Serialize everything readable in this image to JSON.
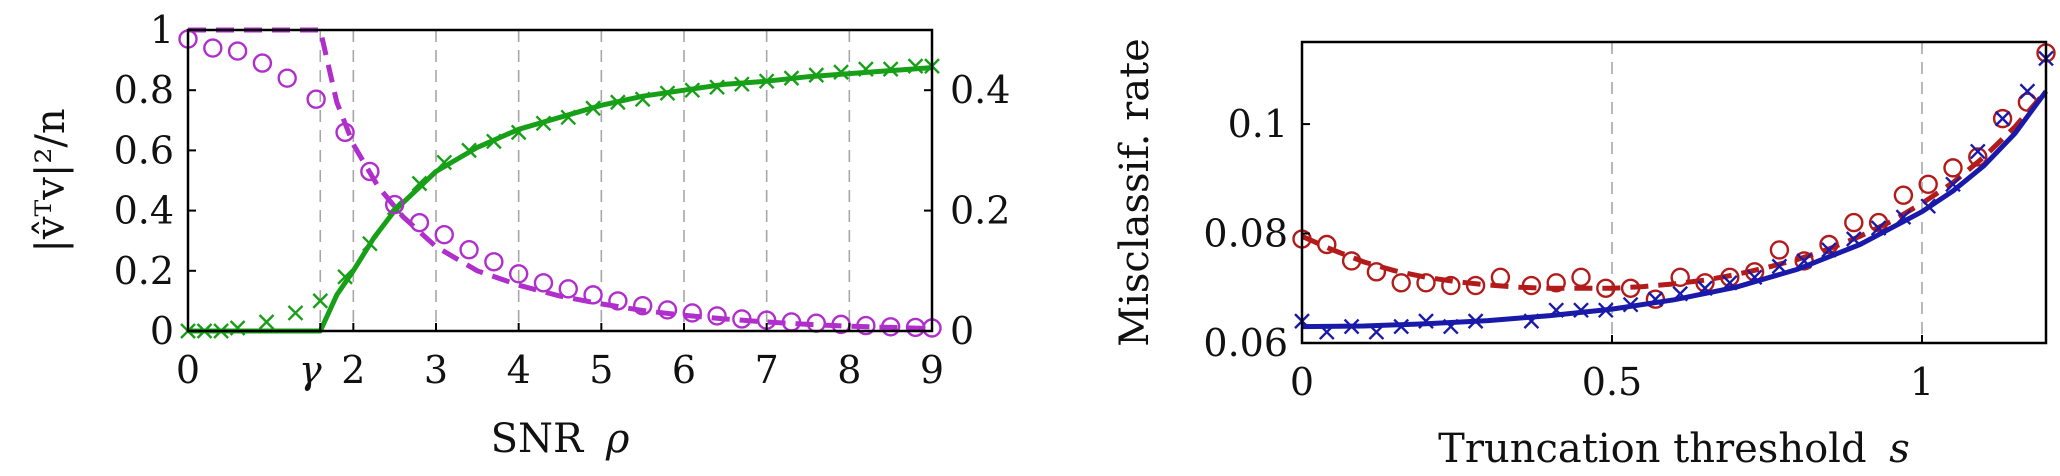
{
  "chart_data": [
    {
      "type": "line",
      "xlabel": "SNR",
      "xlabel_symbol": "ρ",
      "ylabel": "|v̂ᵀv|²/n",
      "xlim": [
        0,
        9
      ],
      "ylim": [
        0,
        1
      ],
      "y2lim": [
        0,
        0.5
      ],
      "xticks": [
        {
          "value": 0,
          "label": "0"
        },
        {
          "value": 1.6,
          "label": "γ"
        },
        {
          "value": 2,
          "label": "2"
        },
        {
          "value": 3,
          "label": "3"
        },
        {
          "value": 4,
          "label": "4"
        },
        {
          "value": 5,
          "label": "5"
        },
        {
          "value": 6,
          "label": "6"
        },
        {
          "value": 7,
          "label": "7"
        },
        {
          "value": 8,
          "label": "8"
        },
        {
          "value": 9,
          "label": "9"
        }
      ],
      "yticks": [
        "0",
        "0.2",
        "0.4",
        "0.6",
        "0.8",
        "1"
      ],
      "y2ticks": [
        "0",
        "0.2",
        "0.4"
      ],
      "grid": "vertical dashed",
      "series": [
        {
          "style": "solid line, left axis",
          "color": "#17a017",
          "x": [
            0,
            1.6,
            1.8,
            2.0,
            2.25,
            2.5,
            3.0,
            3.5,
            4.0,
            4.5,
            5.0,
            5.5,
            6.0,
            6.5,
            7.0,
            7.5,
            8.0,
            8.5,
            9.0
          ],
          "y": [
            0,
            0,
            0.12,
            0.2,
            0.31,
            0.4,
            0.53,
            0.61,
            0.67,
            0.71,
            0.75,
            0.78,
            0.8,
            0.82,
            0.83,
            0.845,
            0.855,
            0.865,
            0.875
          ]
        },
        {
          "style": "x markers, left axis",
          "color": "#17a017",
          "x": [
            0,
            0.2,
            0.4,
            0.6,
            0.95,
            1.3,
            1.6,
            1.9,
            2.2,
            2.5,
            2.8,
            3.1,
            3.4,
            3.7,
            4.0,
            4.3,
            4.6,
            4.9,
            5.2,
            5.5,
            5.8,
            6.1,
            6.4,
            6.7,
            7.0,
            7.3,
            7.6,
            7.9,
            8.2,
            8.5,
            8.8,
            9.0
          ],
          "y": [
            0,
            0,
            0,
            0.01,
            0.03,
            0.06,
            0.1,
            0.18,
            0.29,
            0.41,
            0.49,
            0.56,
            0.6,
            0.63,
            0.66,
            0.69,
            0.71,
            0.74,
            0.76,
            0.77,
            0.79,
            0.8,
            0.81,
            0.82,
            0.83,
            0.84,
            0.85,
            0.86,
            0.87,
            0.87,
            0.88,
            0.88
          ]
        },
        {
          "style": "dashed line, right axis",
          "color": "#b02ecc",
          "x": [
            0,
            1.6,
            1.8,
            2.0,
            2.3,
            2.6,
            3.0,
            3.5,
            4.0,
            4.5,
            5.0,
            5.5,
            6.0,
            6.5,
            7.0,
            7.5,
            8.0,
            8.5,
            9.0
          ],
          "y": [
            0.5,
            0.5,
            0.38,
            0.31,
            0.24,
            0.19,
            0.14,
            0.1,
            0.076,
            0.058,
            0.045,
            0.034,
            0.026,
            0.02,
            0.015,
            0.011,
            0.008,
            0.006,
            0.004
          ]
        },
        {
          "style": "circle markers, right axis",
          "color": "#b02ecc",
          "x": [
            0,
            0.3,
            0.6,
            0.9,
            1.2,
            1.55,
            1.9,
            2.2,
            2.5,
            2.8,
            3.1,
            3.4,
            3.7,
            4.0,
            4.3,
            4.6,
            4.9,
            5.2,
            5.5,
            5.8,
            6.1,
            6.4,
            6.7,
            7.0,
            7.3,
            7.6,
            7.9,
            8.2,
            8.5,
            8.8,
            9.0
          ],
          "y": [
            0.485,
            0.47,
            0.465,
            0.445,
            0.42,
            0.385,
            0.33,
            0.265,
            0.21,
            0.18,
            0.16,
            0.135,
            0.115,
            0.095,
            0.08,
            0.07,
            0.06,
            0.05,
            0.042,
            0.035,
            0.03,
            0.025,
            0.02,
            0.018,
            0.015,
            0.013,
            0.011,
            0.009,
            0.007,
            0.006,
            0.005
          ]
        }
      ]
    },
    {
      "type": "line",
      "xlabel": "Truncation threshold",
      "xlabel_symbol": "s",
      "ylabel": "Misclassif. rate",
      "xlim": [
        0,
        1.2
      ],
      "ylim": [
        0.06,
        0.115
      ],
      "xticks": [
        {
          "value": 0,
          "label": "0"
        },
        {
          "value": 0.5,
          "label": "0.5"
        },
        {
          "value": 1,
          "label": "1"
        }
      ],
      "yticks": [
        {
          "value": 0.06,
          "label": "0.06"
        },
        {
          "value": 0.08,
          "label": "0.08"
        },
        {
          "value": 0.1,
          "label": "0.1"
        }
      ],
      "grid": "vertical dashed",
      "series": [
        {
          "style": "dashed line",
          "color": "#b31b1b",
          "x": [
            0,
            0.05,
            0.1,
            0.15,
            0.2,
            0.25,
            0.3,
            0.35,
            0.4,
            0.45,
            0.5,
            0.55,
            0.6,
            0.65,
            0.7,
            0.75,
            0.8,
            0.85,
            0.9,
            0.95,
            1.0,
            1.05,
            1.1,
            1.15,
            1.2
          ],
          "y": [
            0.0795,
            0.077,
            0.0748,
            0.0732,
            0.072,
            0.0712,
            0.0706,
            0.0702,
            0.07,
            0.07,
            0.07,
            0.0703,
            0.0708,
            0.0715,
            0.0725,
            0.0738,
            0.0753,
            0.0772,
            0.0795,
            0.0822,
            0.0855,
            0.0893,
            0.094,
            0.0995,
            0.106
          ]
        },
        {
          "style": "circle markers",
          "color": "#b31b1b",
          "x": [
            0,
            0.04,
            0.08,
            0.12,
            0.16,
            0.2,
            0.24,
            0.28,
            0.32,
            0.37,
            0.41,
            0.45,
            0.49,
            0.53,
            0.57,
            0.61,
            0.65,
            0.69,
            0.73,
            0.77,
            0.81,
            0.85,
            0.89,
            0.93,
            0.97,
            1.01,
            1.05,
            1.09,
            1.13,
            1.17,
            1.2
          ],
          "y": [
            0.079,
            0.078,
            0.075,
            0.073,
            0.071,
            0.071,
            0.0705,
            0.0705,
            0.072,
            0.0705,
            0.071,
            0.072,
            0.07,
            0.07,
            0.068,
            0.072,
            0.071,
            0.072,
            0.073,
            0.077,
            0.075,
            0.078,
            0.082,
            0.082,
            0.087,
            0.089,
            0.092,
            0.094,
            0.101,
            0.104,
            0.113
          ]
        },
        {
          "style": "solid line",
          "color": "#1a1aaa",
          "x": [
            0,
            0.1,
            0.2,
            0.3,
            0.4,
            0.5,
            0.6,
            0.7,
            0.8,
            0.9,
            1.0,
            1.05,
            1.1,
            1.15,
            1.2
          ],
          "y": [
            0.063,
            0.0631,
            0.0635,
            0.0641,
            0.065,
            0.0662,
            0.0679,
            0.0702,
            0.0735,
            0.078,
            0.084,
            0.0878,
            0.0924,
            0.0983,
            0.106
          ]
        },
        {
          "style": "x markers",
          "color": "#1a1aaa",
          "x": [
            0,
            0.04,
            0.08,
            0.12,
            0.16,
            0.2,
            0.24,
            0.28,
            0.37,
            0.41,
            0.45,
            0.49,
            0.53,
            0.57,
            0.61,
            0.65,
            0.69,
            0.73,
            0.77,
            0.81,
            0.85,
            0.89,
            0.93,
            0.97,
            1.01,
            1.05,
            1.09,
            1.13,
            1.17,
            1.2
          ],
          "y": [
            0.064,
            0.062,
            0.063,
            0.062,
            0.063,
            0.064,
            0.063,
            0.064,
            0.064,
            0.066,
            0.066,
            0.066,
            0.067,
            0.068,
            0.069,
            0.07,
            0.071,
            0.072,
            0.074,
            0.075,
            0.077,
            0.079,
            0.081,
            0.083,
            0.085,
            0.089,
            0.095,
            0.101,
            0.106,
            0.112
          ]
        }
      ]
    }
  ]
}
